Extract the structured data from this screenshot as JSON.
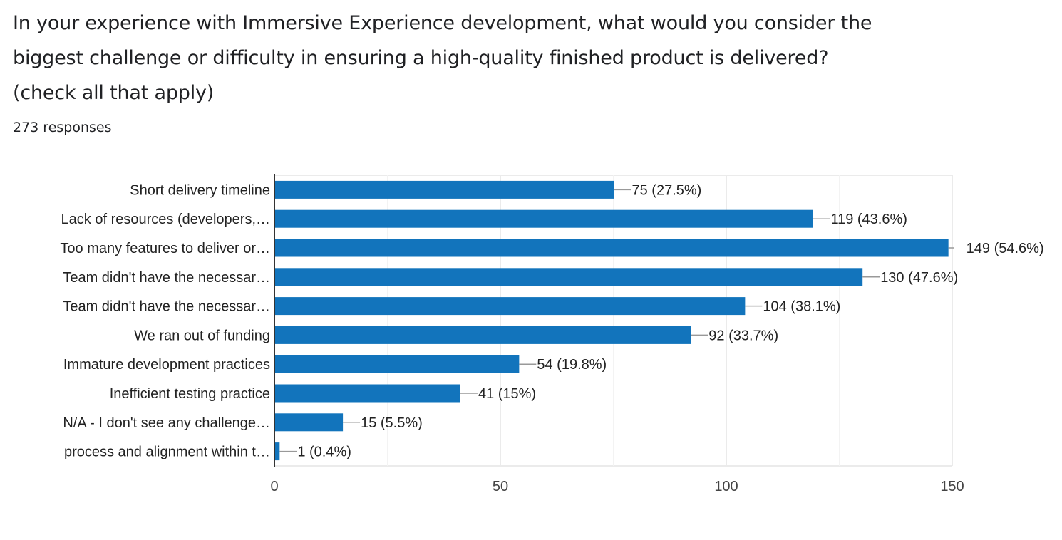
{
  "header": {
    "title_lines": [
      "In your experience with Immersive Experience development, what would you consider the",
      "biggest challenge or difficulty in ensuring a high-quality finished product is delivered?",
      "(check all that apply)"
    ],
    "responses": "273 responses"
  },
  "colors": {
    "bar": "#1274bc",
    "grid": "#ebebeb",
    "axis": "#333333",
    "leader": "#999999"
  },
  "chart_data": {
    "type": "bar",
    "orientation": "horizontal",
    "title": "In your experience with Immersive Experience development, what would you consider the biggest challenge or difficulty in ensuring a high-quality finished product is delivered? (check all that apply)",
    "xlabel": "",
    "ylabel": "",
    "xlim": [
      0,
      150
    ],
    "x_ticks": [
      0,
      50,
      100,
      150
    ],
    "minor_grid": [
      25,
      75,
      125
    ],
    "grid": true,
    "categories": [
      "Short delivery timeline",
      "Lack of resources (developers,…",
      "Too many features to deliver or…",
      "Team didn't have the necessar…",
      "Team didn't have the necessar…",
      "We ran out of funding",
      "Immature development practices",
      "Inefficient testing practice",
      "N/A - I don't see any challenge…",
      "process and alignment within t…"
    ],
    "values": [
      75,
      119,
      149,
      130,
      104,
      92,
      54,
      41,
      15,
      1
    ],
    "labels": [
      "75 (27.5%)",
      "119 (43.6%)",
      "149 (54.6%)",
      "130 (47.6%)",
      "104 (38.1%)",
      "92 (33.7%)",
      "54 (19.8%)",
      "41 (15%)",
      "15 (5.5%)",
      "1 (0.4%)"
    ]
  }
}
